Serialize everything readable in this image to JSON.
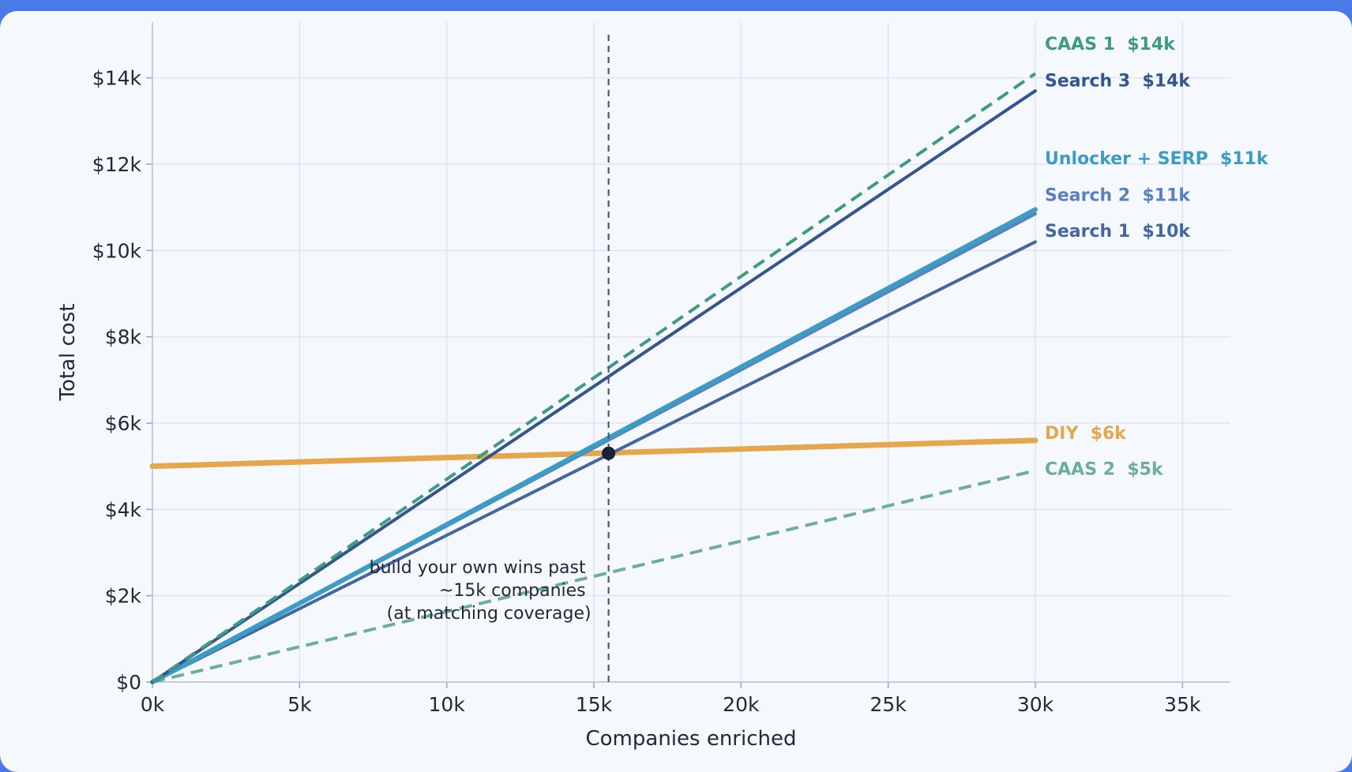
{
  "chart_data": {
    "type": "line",
    "xlabel": "Companies enriched",
    "ylabel": "Total cost",
    "xlim": [
      0,
      36700
    ],
    "ylim": [
      0,
      15200
    ],
    "x_ticks": [
      {
        "value": 0,
        "label": "0k"
      },
      {
        "value": 5000,
        "label": "5k"
      },
      {
        "value": 10000,
        "label": "10k"
      },
      {
        "value": 15000,
        "label": "15k"
      },
      {
        "value": 20000,
        "label": "20k"
      },
      {
        "value": 25000,
        "label": "25k"
      },
      {
        "value": 30000,
        "label": "30k"
      },
      {
        "value": 35000,
        "label": "35k"
      }
    ],
    "y_ticks": [
      {
        "value": 0,
        "label": "$0"
      },
      {
        "value": 2000,
        "label": "$2k"
      },
      {
        "value": 4000,
        "label": "$4k"
      },
      {
        "value": 6000,
        "label": "$6k"
      },
      {
        "value": 8000,
        "label": "$8k"
      },
      {
        "value": 10000,
        "label": "$10k"
      },
      {
        "value": 12000,
        "label": "$12k"
      },
      {
        "value": 14000,
        "label": "$14k"
      }
    ],
    "grid": true,
    "series": [
      {
        "name": "CAAS 1",
        "end_label": "$14k",
        "color": "#3f9a84",
        "dash": true,
        "width": 4,
        "x": [
          0,
          30000
        ],
        "y": [
          0,
          14100
        ],
        "label_value": 14800
      },
      {
        "name": "Search 3",
        "end_label": "$14k",
        "color": "#34558e",
        "dash": false,
        "width": 4,
        "x": [
          0,
          30000
        ],
        "y": [
          0,
          13700
        ],
        "label_value": 13950
      },
      {
        "name": "Unlocker + SERP",
        "end_label": "$11k",
        "color": "#3d9cc5",
        "dash": false,
        "width": 6,
        "x": [
          0,
          30000
        ],
        "y": [
          0,
          10950
        ],
        "label_value": 12150
      },
      {
        "name": "Search 2",
        "end_label": "$11k",
        "color": "#5a80bf",
        "dash": false,
        "width": 4,
        "x": [
          0,
          30000
        ],
        "y": [
          0,
          10850
        ],
        "label_value": 11300
      },
      {
        "name": "Search 1",
        "end_label": "$10k",
        "color": "#4467a0",
        "dash": false,
        "width": 4,
        "x": [
          0,
          30000
        ],
        "y": [
          0,
          10200
        ],
        "label_value": 10460
      },
      {
        "name": "DIY",
        "end_label": "$6k",
        "color": "#e4a74c",
        "dash": false,
        "width": 7,
        "x": [
          0,
          30000
        ],
        "y": [
          5000,
          5600
        ],
        "label_value": 5780
      },
      {
        "name": "CAAS 2",
        "end_label": "$5k",
        "color": "#6cae9a",
        "dash": true,
        "width": 4,
        "x": [
          0,
          30000
        ],
        "y": [
          0,
          4900
        ],
        "label_value": 4950
      }
    ],
    "breakeven": {
      "x": 15500,
      "y": 5300
    },
    "annotation": [
      "build your own wins past",
      "~15k companies",
      "(at matching coverage)"
    ]
  }
}
